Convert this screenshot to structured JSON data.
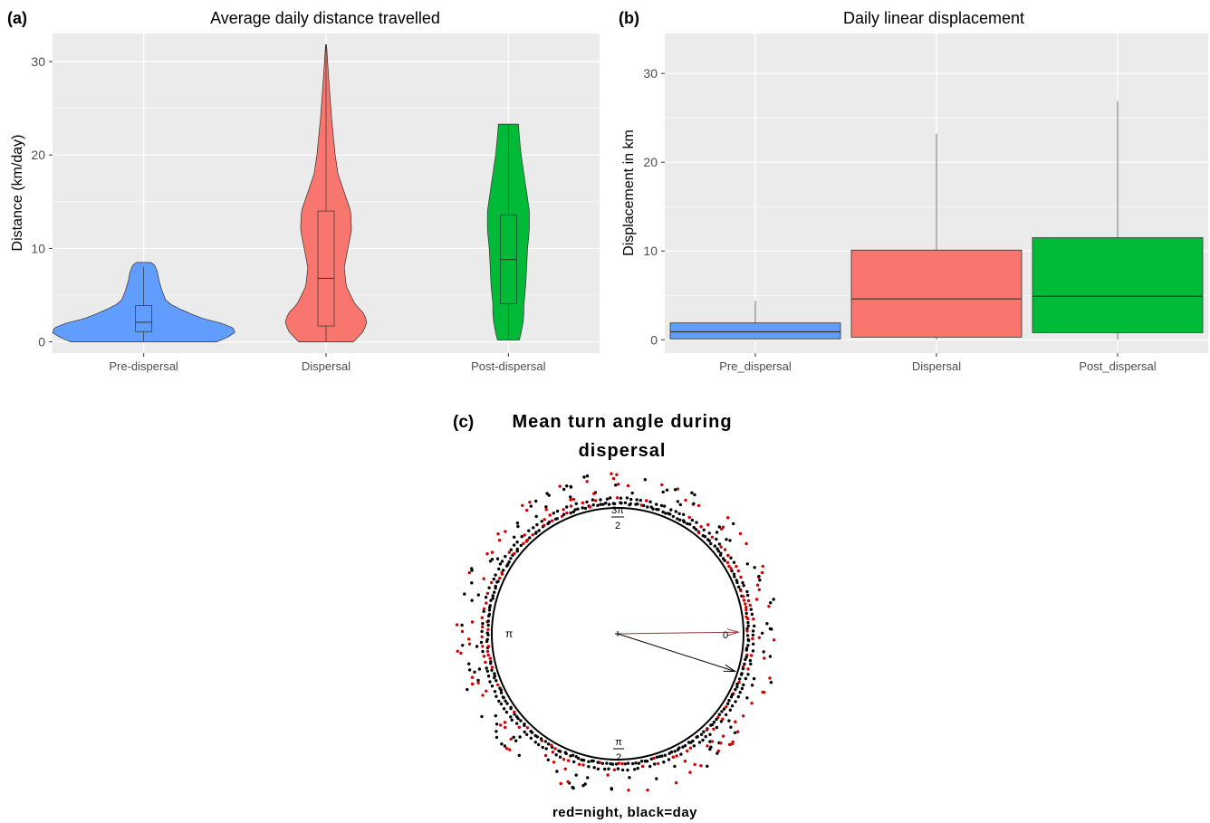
{
  "colors": {
    "panel_bg": "#ebebeb",
    "grid": "#ffffff",
    "pre": "#619cff",
    "dispersal": "#f8766d",
    "post": "#00ba38",
    "night": "#d10000",
    "day": "#000000",
    "arrow_night": "#8b3a3a",
    "arrow_day": "#000000"
  },
  "chart_data": [
    {
      "panel_label": "(a)",
      "type": "violin",
      "title": "Average daily distance travelled",
      "xlabel": "",
      "ylabel": "Distance (km/day)",
      "ylim": [
        -1.2,
        33
      ],
      "yticks": [
        0,
        10,
        20,
        30
      ],
      "categories": [
        "Pre-dispersal",
        "Dispersal",
        "Post-dispersal"
      ],
      "series": [
        {
          "color_key": "pre",
          "box": {
            "min": 0,
            "q1": 1.1,
            "median": 2.1,
            "q3": 3.9,
            "max": 8.0
          },
          "range": [
            0,
            8.5
          ],
          "density_profile": [
            [
              0,
              0.8
            ],
            [
              0.5,
              0.92
            ],
            [
              1.0,
              1.0
            ],
            [
              1.5,
              0.98
            ],
            [
              2.0,
              0.85
            ],
            [
              2.5,
              0.65
            ],
            [
              3.0,
              0.52
            ],
            [
              3.5,
              0.4
            ],
            [
              4.0,
              0.3
            ],
            [
              4.5,
              0.24
            ],
            [
              5.5,
              0.2
            ],
            [
              6.5,
              0.17
            ],
            [
              7.5,
              0.15
            ],
            [
              8.2,
              0.12
            ],
            [
              8.5,
              0.08
            ]
          ]
        },
        {
          "color_key": "dispersal",
          "box": {
            "min": 0,
            "q1": 1.7,
            "median": 6.8,
            "q3": 14.0,
            "max": 31.8
          },
          "range": [
            0,
            31.8
          ],
          "density_profile": [
            [
              0,
              0.3
            ],
            [
              1.0,
              0.4
            ],
            [
              2.0,
              0.45
            ],
            [
              3.0,
              0.42
            ],
            [
              4.0,
              0.32
            ],
            [
              6.0,
              0.22
            ],
            [
              8.0,
              0.2
            ],
            [
              10.0,
              0.24
            ],
            [
              12.0,
              0.28
            ],
            [
              14.0,
              0.27
            ],
            [
              16.0,
              0.2
            ],
            [
              18.0,
              0.13
            ],
            [
              20.0,
              0.1
            ],
            [
              24.0,
              0.06
            ],
            [
              28.0,
              0.03
            ],
            [
              31.8,
              0.005
            ]
          ]
        },
        {
          "color_key": "post",
          "box": {
            "min": 0.2,
            "q1": 4.1,
            "median": 8.8,
            "q3": 13.6,
            "max": 23.3
          },
          "range": [
            0.2,
            23.3
          ],
          "density_profile": [
            [
              0.2,
              0.12
            ],
            [
              1.0,
              0.14
            ],
            [
              2.0,
              0.16
            ],
            [
              3.0,
              0.17
            ],
            [
              4.0,
              0.17
            ],
            [
              6.0,
              0.19
            ],
            [
              8.0,
              0.2
            ],
            [
              10.0,
              0.21
            ],
            [
              12.0,
              0.23
            ],
            [
              14.0,
              0.23
            ],
            [
              16.0,
              0.2
            ],
            [
              18.0,
              0.17
            ],
            [
              20.0,
              0.14
            ],
            [
              22.0,
              0.12
            ],
            [
              23.3,
              0.11
            ]
          ]
        }
      ]
    },
    {
      "panel_label": "(b)",
      "type": "box",
      "title": "Daily linear displacement",
      "xlabel": "",
      "ylabel": "Displacement in km",
      "ylim": [
        -1.5,
        34.5
      ],
      "yticks": [
        0,
        10,
        20,
        30
      ],
      "categories": [
        "Pre_dispersal",
        "Dispersal",
        "Post_dispersal"
      ],
      "series": [
        {
          "color_key": "pre",
          "min": 0,
          "q1": 0.1,
          "median": 0.9,
          "q3": 1.9,
          "max": 4.4
        },
        {
          "color_key": "dispersal",
          "min": 0,
          "q1": 0.3,
          "median": 4.6,
          "q3": 10.1,
          "max": 23.2
        },
        {
          "color_key": "post",
          "min": 0,
          "q1": 0.8,
          "median": 4.9,
          "q3": 11.5,
          "max": 26.9
        }
      ]
    },
    {
      "panel_label": "(c)",
      "type": "circular",
      "title_line1": "Mean turn angle during",
      "title_line2": "dispersal",
      "caption": "red=night, black=day",
      "axis_labels": {
        "zero": "0",
        "pi": "π",
        "top_num": "3π",
        "top_den": "2",
        "bottom_num": "π",
        "bottom_den": "2"
      },
      "mean_angles_rad": {
        "night": 6.27,
        "day": 0.31
      },
      "mean_resultant_length": {
        "night": 0.96,
        "day": 0.98
      },
      "legend": {
        "night": "red",
        "day": "black"
      }
    }
  ]
}
